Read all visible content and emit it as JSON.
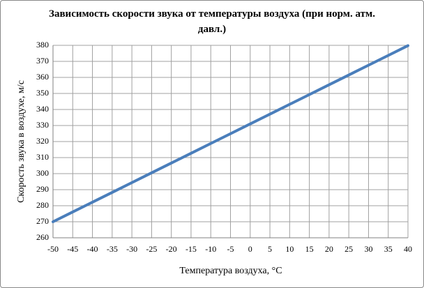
{
  "chart_data": {
    "type": "line",
    "title": "Зависимость скорости звука от температуры воздуха  (при норм. атм. давл.)",
    "x_label": "Температура воздуха, °C",
    "y_label": "Скорость звука в воздухе, м/с",
    "x": [
      -50,
      -45,
      -40,
      -35,
      -30,
      -25,
      -20,
      -15,
      -10,
      -5,
      0,
      5,
      10,
      15,
      20,
      25,
      30,
      35,
      40
    ],
    "series": [
      {
        "name": "Скорость звука",
        "color": "#4a7ebb",
        "values": [
          270,
          276.1,
          282.2,
          288.3,
          294.4,
          300.5,
          306.6,
          312.7,
          318.8,
          324.9,
          331,
          337.1,
          343.2,
          349.3,
          355.4,
          361.5,
          367.6,
          373.7,
          379.8
        ]
      }
    ],
    "xlim": [
      -50,
      40
    ],
    "xticks": [
      -50,
      -45,
      -40,
      -35,
      -30,
      -25,
      -20,
      -15,
      -10,
      -5,
      0,
      5,
      10,
      15,
      20,
      25,
      30,
      35,
      40
    ],
    "ylim": [
      260,
      380
    ],
    "yticks": [
      260,
      270,
      280,
      290,
      300,
      310,
      320,
      330,
      340,
      350,
      360,
      370,
      380
    ],
    "grid": true
  }
}
